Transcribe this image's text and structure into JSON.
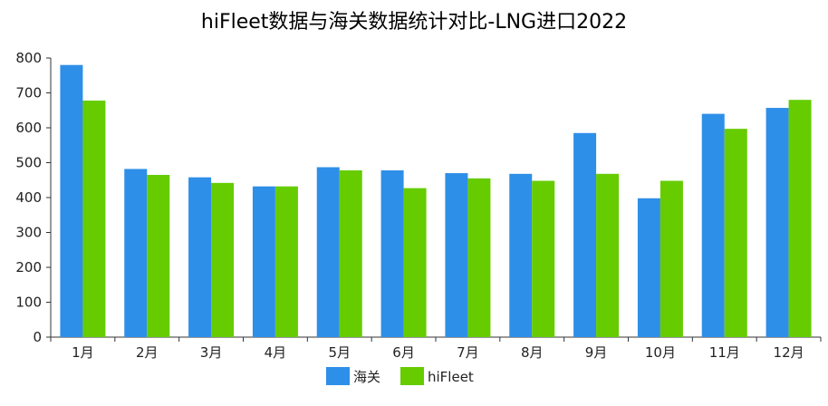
{
  "chart_data": {
    "type": "bar",
    "title": "hiFleet数据与海关数据统计对比-LNG进口2022",
    "xlabel": "",
    "ylabel": "",
    "categories": [
      "1月",
      "2月",
      "3月",
      "4月",
      "5月",
      "6月",
      "7月",
      "8月",
      "9月",
      "10月",
      "11月",
      "12月"
    ],
    "series": [
      {
        "name": "海关",
        "color": "#2e8fe8",
        "values": [
          780,
          482,
          458,
          432,
          487,
          478,
          470,
          468,
          585,
          398,
          640,
          657
        ]
      },
      {
        "name": "hiFleet",
        "color": "#66cc00",
        "values": [
          678,
          465,
          442,
          432,
          478,
          427,
          455,
          448,
          468,
          448,
          597,
          680
        ]
      }
    ],
    "ylim": [
      0,
      800
    ],
    "yticks": [
      0,
      100,
      200,
      300,
      400,
      500,
      600,
      700,
      800
    ],
    "grid": false,
    "legend_position": "bottom"
  }
}
